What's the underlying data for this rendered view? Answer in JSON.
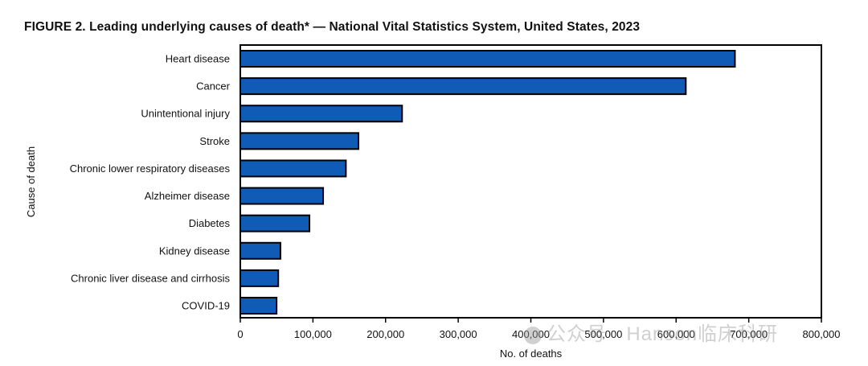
{
  "chart_data": {
    "type": "bar",
    "orientation": "horizontal",
    "title": "FIGURE 2. Leading underlying causes of death* — National Vital Statistics System, United States, 2023",
    "xlabel": "No. of deaths",
    "ylabel": "Cause of death",
    "categories": [
      "Heart disease",
      "Cancer",
      "Unintentional injury",
      "Stroke",
      "Chronic lower respiratory diseases",
      "Alzheimer disease",
      "Diabetes",
      "Kidney disease",
      "Chronic liver disease and cirrhosis",
      "COVID-19"
    ],
    "values": [
      680981,
      613352,
      222698,
      162639,
      145357,
      114034,
      95190,
      55253,
      52222,
      49932
    ],
    "xlim": [
      0,
      800000
    ],
    "xticks": [
      0,
      100000,
      200000,
      300000,
      400000,
      500000,
      600000,
      700000,
      800000
    ],
    "xtick_labels": [
      "0",
      "100,000",
      "200,000",
      "300,000",
      "400,000",
      "500,000",
      "600,000",
      "700,000",
      "800,000"
    ],
    "bar_color": "#0f5bb5",
    "grid": false
  },
  "watermark": {
    "text": "公众号 · Hanson临床科研",
    "icon": "wechat-icon"
  }
}
